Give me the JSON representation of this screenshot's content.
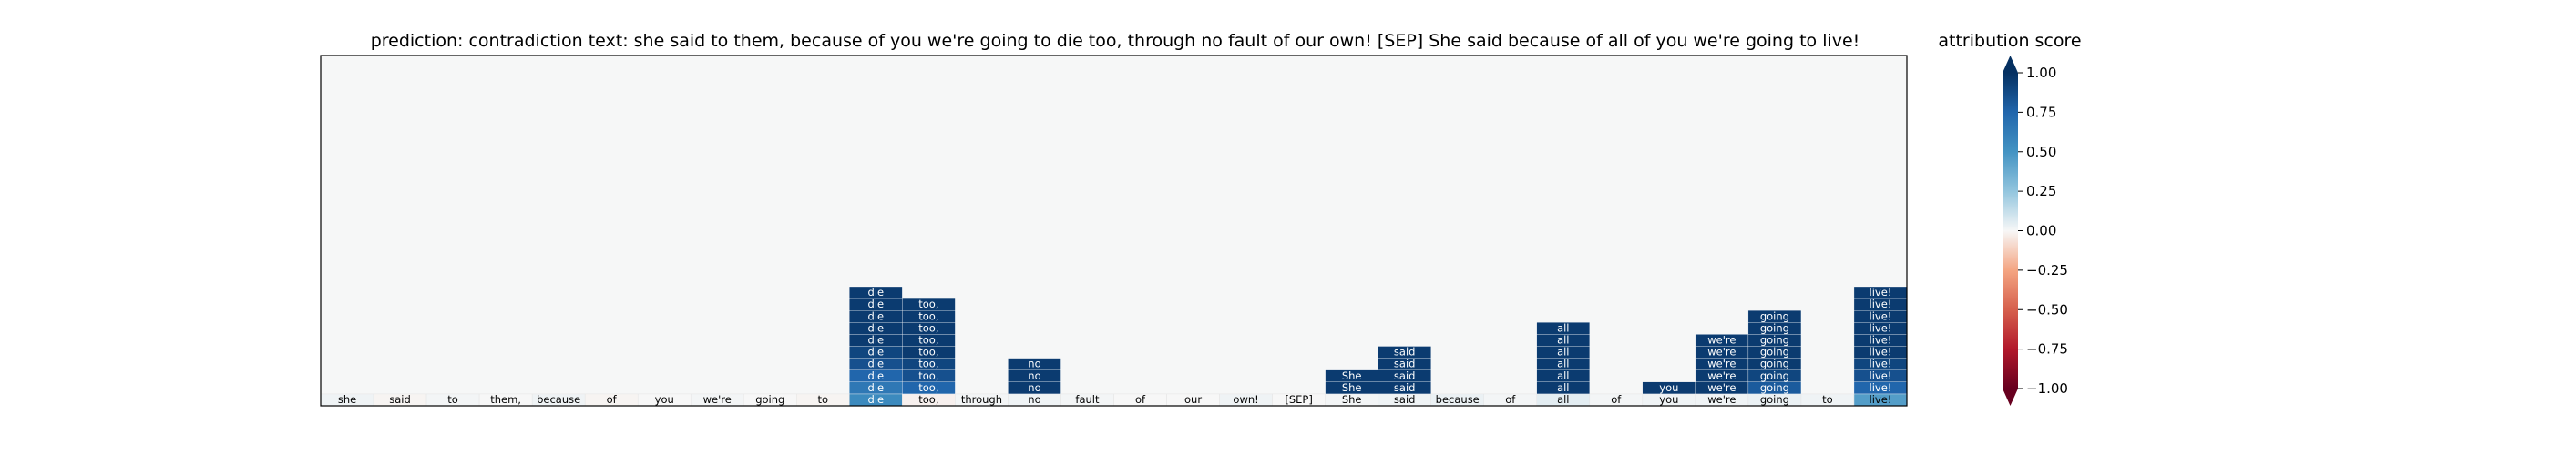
{
  "chart_data": {
    "type": "heatmap",
    "title": "prediction:  contradiction     text:  she said to them, because of you we're going to die too, through no fault of our own! [SEP] She said because of all of you we're going to live!",
    "tokens": [
      "she",
      "said",
      "to",
      "them,",
      "because",
      "of",
      "you",
      "we're",
      "going",
      "to",
      "die",
      "too,",
      "through",
      "no",
      "fault",
      "of",
      "our",
      "own!",
      "[SEP]",
      "She",
      "said",
      "because",
      "of",
      "all",
      "of",
      "you",
      "we're",
      "going",
      "to",
      "live!"
    ],
    "layer0_scores": [
      0.02,
      -0.01,
      0.01,
      0.0,
      0.02,
      -0.01,
      0.0,
      0.01,
      0.0,
      -0.01,
      0.55,
      -0.02,
      0.01,
      0.02,
      0.01,
      0.0,
      0.0,
      0.02,
      0.0,
      0.01,
      0.02,
      0.03,
      0.01,
      0.05,
      0.01,
      0.02,
      0.02,
      0.03,
      0.02,
      0.45
    ],
    "stacks": [
      {
        "token_index": 10,
        "label": "die",
        "values": [
          0.95,
          0.95,
          0.95,
          0.95,
          0.95,
          0.9,
          0.85,
          0.75,
          0.65
        ]
      },
      {
        "token_index": 11,
        "label": "too,",
        "values": [
          0.95,
          0.95,
          0.95,
          0.95,
          0.95,
          0.9,
          0.85,
          0.75
        ]
      },
      {
        "token_index": 13,
        "label": "no",
        "values": [
          0.95,
          0.95,
          0.95
        ]
      },
      {
        "token_index": 19,
        "label": "She",
        "values": [
          0.95,
          0.95
        ]
      },
      {
        "token_index": 20,
        "label": "said",
        "values": [
          0.95,
          0.95,
          0.95,
          0.95
        ]
      },
      {
        "token_index": 23,
        "label": "all",
        "values": [
          0.95,
          0.95,
          0.95,
          0.95,
          0.95,
          0.95
        ]
      },
      {
        "token_index": 25,
        "label": "you",
        "values": [
          0.95
        ]
      },
      {
        "token_index": 26,
        "label": "we're",
        "values": [
          0.95,
          0.95,
          0.95,
          0.95,
          0.95
        ]
      },
      {
        "token_index": 27,
        "label": "going",
        "values": [
          0.95,
          0.95,
          0.95,
          0.95,
          0.95,
          0.9,
          0.8
        ]
      },
      {
        "token_index": 29,
        "label": "live!",
        "values": [
          0.95,
          0.95,
          0.95,
          0.95,
          0.95,
          0.95,
          0.9,
          0.85,
          0.75
        ]
      }
    ],
    "colorbar": {
      "label": "attribution score",
      "range": [
        -1.0,
        1.0
      ],
      "ticks": [
        "1.00",
        "0.75",
        "0.50",
        "0.25",
        "0.00",
        "−0.25",
        "−0.50",
        "−0.75",
        "−1.00"
      ],
      "colormap": "RdBu",
      "extend": "both"
    },
    "colors": {
      "background": "#f6f7f7",
      "strong_positive": "#053061",
      "strong_negative": "#67001f"
    }
  }
}
